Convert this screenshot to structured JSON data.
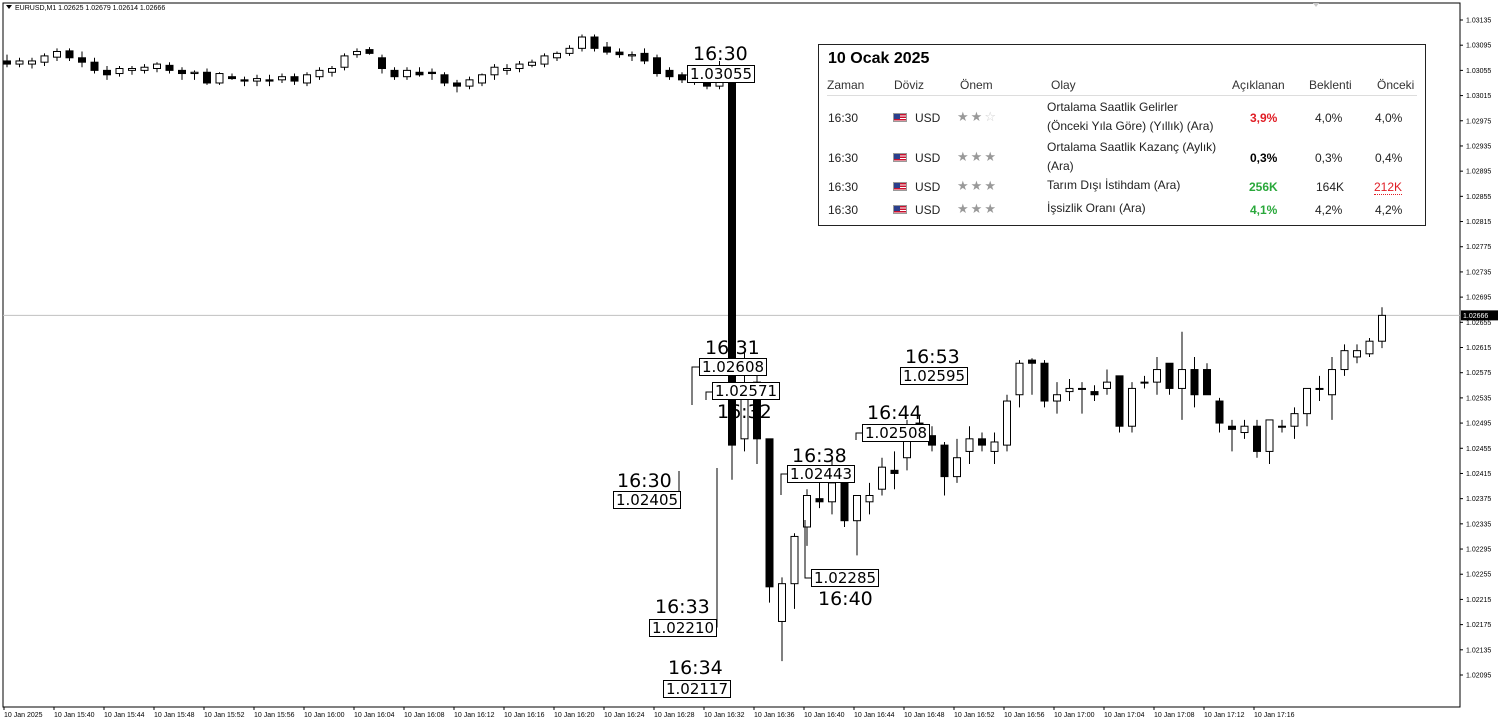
{
  "chart_title": "EURUSD,M1  1.02625 1.02679 1.02614 1.02666",
  "current_price_label": "1.02666",
  "chart_data": {
    "type": "candlestick",
    "symbol": "EURUSD",
    "timeframe": "M1",
    "ohlc_header": {
      "open": 1.02625,
      "high": 1.02679,
      "low": 1.02614,
      "close": 1.02666
    },
    "current_price": 1.02666,
    "ylim": [
      1.02095,
      1.03135
    ],
    "y_ticks": [
      "1.03135",
      "1.03095",
      "1.03055",
      "1.03015",
      "1.02975",
      "1.02935",
      "1.02895",
      "1.02855",
      "1.02815",
      "1.02775",
      "1.02735",
      "1.02695",
      "1.02655",
      "1.02615",
      "1.02575",
      "1.02535",
      "1.02495",
      "1.02455",
      "1.02415",
      "1.02375",
      "1.02335",
      "1.02295",
      "1.02255",
      "1.02215",
      "1.02175",
      "1.02135",
      "1.02095"
    ],
    "x_ticks": [
      "10 Jan 2025",
      "10 Jan 15:40",
      "10 Jan 15:44",
      "10 Jan 15:48",
      "10 Jan 15:52",
      "10 Jan 15:56",
      "10 Jan 16:00",
      "10 Jan 16:04",
      "10 Jan 16:08",
      "10 Jan 16:12",
      "10 Jan 16:16",
      "10 Jan 16:20",
      "10 Jan 16:24",
      "10 Jan 16:28",
      "10 Jan 16:32",
      "10 Jan 16:36",
      "10 Jan 16:40",
      "10 Jan 16:44",
      "10 Jan 16:48",
      "10 Jan 16:52",
      "10 Jan 16:56",
      "10 Jan 17:00",
      "10 Jan 17:04",
      "10 Jan 17:08",
      "10 Jan 17:12",
      "10 Jan 17:16"
    ],
    "candles": [
      [
        1.0307,
        1.0308,
        1.0306,
        1.03065
      ],
      [
        1.03065,
        1.03075,
        1.0306,
        1.0307
      ],
      [
        1.03065,
        1.03075,
        1.03058,
        1.0307
      ],
      [
        1.03068,
        1.03082,
        1.03062,
        1.03078
      ],
      [
        1.03076,
        1.0309,
        1.0307,
        1.03085
      ],
      [
        1.03086,
        1.0309,
        1.0307,
        1.03075
      ],
      [
        1.03075,
        1.03085,
        1.0306,
        1.03068
      ],
      [
        1.03068,
        1.03075,
        1.0305,
        1.03055
      ],
      [
        1.03055,
        1.03062,
        1.0304,
        1.03048
      ],
      [
        1.0305,
        1.03062,
        1.03045,
        1.03058
      ],
      [
        1.03055,
        1.03062,
        1.03048,
        1.03058
      ],
      [
        1.03055,
        1.03065,
        1.0305,
        1.0306
      ],
      [
        1.03058,
        1.03068,
        1.03052,
        1.03065
      ],
      [
        1.03063,
        1.03068,
        1.0305,
        1.03055
      ],
      [
        1.03055,
        1.0306,
        1.0304,
        1.0305
      ],
      [
        1.0305,
        1.03055,
        1.0304,
        1.03052
      ],
      [
        1.03052,
        1.03058,
        1.03032,
        1.03035
      ],
      [
        1.03035,
        1.03052,
        1.03032,
        1.0305
      ],
      [
        1.03045,
        1.0305,
        1.0304,
        1.03042
      ],
      [
        1.0304,
        1.03045,
        1.0303,
        1.03038
      ],
      [
        1.03038,
        1.03048,
        1.0303,
        1.03042
      ],
      [
        1.0304,
        1.03048,
        1.0303,
        1.03038
      ],
      [
        1.0304,
        1.0305,
        1.03035,
        1.03045
      ],
      [
        1.03045,
        1.0305,
        1.03032,
        1.03038
      ],
      [
        1.03035,
        1.03052,
        1.0303,
        1.03048
      ],
      [
        1.03045,
        1.0306,
        1.0304,
        1.03055
      ],
      [
        1.03052,
        1.03062,
        1.03045,
        1.03058
      ],
      [
        1.0306,
        1.03082,
        1.03055,
        1.03078
      ],
      [
        1.0308,
        1.0309,
        1.03075,
        1.03085
      ],
      [
        1.03088,
        1.03092,
        1.0308,
        1.03082
      ],
      [
        1.03075,
        1.0308,
        1.0305,
        1.03058
      ],
      [
        1.03055,
        1.0306,
        1.0304,
        1.03045
      ],
      [
        1.03045,
        1.0306,
        1.0304,
        1.03055
      ],
      [
        1.03052,
        1.0306,
        1.03045,
        1.03048
      ],
      [
        1.03052,
        1.03058,
        1.0304,
        1.0305
      ],
      [
        1.03048,
        1.03052,
        1.0303,
        1.03035
      ],
      [
        1.03035,
        1.0304,
        1.0302,
        1.0303
      ],
      [
        1.0303,
        1.03045,
        1.03025,
        1.0304
      ],
      [
        1.03035,
        1.0305,
        1.0303,
        1.03048
      ],
      [
        1.03048,
        1.03065,
        1.0304,
        1.0306
      ],
      [
        1.03055,
        1.03065,
        1.03048,
        1.03058
      ],
      [
        1.03058,
        1.0307,
        1.03052,
        1.03065
      ],
      [
        1.03063,
        1.03072,
        1.0306,
        1.03068
      ],
      [
        1.03065,
        1.03082,
        1.0306,
        1.03078
      ],
      [
        1.03075,
        1.03085,
        1.0307,
        1.03082
      ],
      [
        1.03082,
        1.03095,
        1.03078,
        1.0309
      ],
      [
        1.0309,
        1.03112,
        1.03085,
        1.03108
      ],
      [
        1.03108,
        1.03112,
        1.03085,
        1.0309
      ],
      [
        1.03092,
        1.031,
        1.0308,
        1.03084
      ],
      [
        1.03084,
        1.0309,
        1.03075,
        1.0308
      ],
      [
        1.03078,
        1.03085,
        1.0307,
        1.0308
      ],
      [
        1.03082,
        1.0309,
        1.03065,
        1.0307
      ],
      [
        1.03075,
        1.0308,
        1.03045,
        1.0305
      ],
      [
        1.03055,
        1.0306,
        1.0304,
        1.03045
      ],
      [
        1.03048,
        1.03052,
        1.03035,
        1.0304
      ],
      [
        1.03042,
        1.03048,
        1.03032,
        1.03036
      ],
      [
        1.0304,
        1.03045,
        1.03025,
        1.0303
      ],
      [
        1.0303,
        1.0307,
        1.03025,
        1.03055
      ],
      [
        1.03055,
        1.03055,
        1.02405,
        1.0246
      ],
      [
        1.0247,
        1.02608,
        1.0245,
        1.0255
      ],
      [
        1.0256,
        1.02571,
        1.0243,
        1.0247
      ],
      [
        1.0247,
        1.0247,
        1.0221,
        1.02235
      ],
      [
        1.0218,
        1.0225,
        1.02117,
        1.0224
      ],
      [
        1.0224,
        1.0232,
        1.022,
        1.02315
      ],
      [
        1.0233,
        1.0239,
        1.023,
        1.0238
      ],
      [
        1.02375,
        1.0242,
        1.0236,
        1.0237
      ],
      [
        1.0237,
        1.02443,
        1.0235,
        1.024
      ],
      [
        1.024,
        1.0241,
        1.0233,
        1.0234
      ],
      [
        1.0234,
        1.0237,
        1.02285,
        1.0238
      ],
      [
        1.0237,
        1.024,
        1.0235,
        1.0238
      ],
      [
        1.0239,
        1.0244,
        1.0238,
        1.02425
      ],
      [
        1.0242,
        1.0245,
        1.0239,
        1.02415
      ],
      [
        1.0244,
        1.025,
        1.0242,
        1.0249
      ],
      [
        1.02495,
        1.02508,
        1.0247,
        1.0248
      ],
      [
        1.02475,
        1.0249,
        1.0245,
        1.0246
      ],
      [
        1.0246,
        1.02465,
        1.0238,
        1.0241
      ],
      [
        1.0241,
        1.0247,
        1.024,
        1.0244
      ],
      [
        1.0245,
        1.0249,
        1.0243,
        1.0247
      ],
      [
        1.0247,
        1.0248,
        1.0245,
        1.0246
      ],
      [
        1.0245,
        1.0248,
        1.0243,
        1.02465
      ],
      [
        1.0246,
        1.0254,
        1.0245,
        1.0253
      ],
      [
        1.0254,
        1.02595,
        1.0252,
        1.0259
      ],
      [
        1.02595,
        1.02598,
        1.0254,
        1.0259
      ],
      [
        1.0259,
        1.02595,
        1.0252,
        1.0253
      ],
      [
        1.0253,
        1.0256,
        1.0251,
        1.0254
      ],
      [
        1.02545,
        1.02565,
        1.0253,
        1.0255
      ],
      [
        1.0255,
        1.0256,
        1.0251,
        1.0255
      ],
      [
        1.02545,
        1.02555,
        1.0253,
        1.0254
      ],
      [
        1.0255,
        1.0258,
        1.0254,
        1.0256
      ],
      [
        1.0257,
        1.0257,
        1.0248,
        1.0249
      ],
      [
        1.0249,
        1.0256,
        1.0248,
        1.0255
      ],
      [
        1.0256,
        1.0257,
        1.0255,
        1.0256
      ],
      [
        1.0256,
        1.026,
        1.0254,
        1.0258
      ],
      [
        1.0259,
        1.0259,
        1.0254,
        1.0255
      ],
      [
        1.0255,
        1.0264,
        1.025,
        1.0258
      ],
      [
        1.0258,
        1.026,
        1.0252,
        1.0254
      ],
      [
        1.0258,
        1.0259,
        1.0254,
        1.0254
      ],
      [
        1.0253,
        1.02535,
        1.0248,
        1.02495
      ],
      [
        1.0249,
        1.025,
        1.0245,
        1.02485
      ],
      [
        1.0248,
        1.025,
        1.0247,
        1.0249
      ],
      [
        1.0249,
        1.025,
        1.0244,
        1.0245
      ],
      [
        1.0245,
        1.025,
        1.0243,
        1.025
      ],
      [
        1.0249,
        1.025,
        1.0248,
        1.0249
      ],
      [
        1.0249,
        1.0252,
        1.0247,
        1.0251
      ],
      [
        1.0251,
        1.0255,
        1.0249,
        1.0255
      ],
      [
        1.0255,
        1.0257,
        1.0253,
        1.0255
      ],
      [
        1.0254,
        1.026,
        1.025,
        1.0258
      ],
      [
        1.0258,
        1.0262,
        1.0257,
        1.0261
      ],
      [
        1.026,
        1.0262,
        1.0259,
        1.0261
      ],
      [
        1.02605,
        1.0263,
        1.026,
        1.02625
      ],
      [
        1.02625,
        1.02679,
        1.02614,
        1.02666
      ]
    ]
  },
  "annotations": [
    {
      "time": "16:30",
      "price": "1.03055"
    },
    {
      "time": "16:30",
      "price": "1.02405"
    },
    {
      "time": "16:31",
      "price": "1.02608"
    },
    {
      "time": "16:32",
      "price": "1.02571"
    },
    {
      "time": "16:33",
      "price": "1.02210"
    },
    {
      "time": "16:34",
      "price": "1.02117"
    },
    {
      "time": "16:38",
      "price": "1.02443"
    },
    {
      "time": "16:40",
      "price": "1.02285"
    },
    {
      "time": "16:44",
      "price": "1.02508"
    },
    {
      "time": "16:53",
      "price": "1.02595"
    }
  ],
  "news": {
    "date": "10 Ocak 2025",
    "headers": {
      "time": "Zaman",
      "currency": "Döviz",
      "importance": "Önem",
      "event": "Olay",
      "actual": "Açıklanan",
      "forecast": "Beklenti",
      "previous": "Önceki"
    },
    "rows": [
      {
        "time": "16:30",
        "currency": "USD",
        "flag": "us-flag-icon",
        "stars": 2,
        "event_line1": "Ortalama Saatlik Gelirler",
        "event_line2": "(Önceki Yıla Göre) (Yıllık) (Ara)",
        "actual": "3,9%",
        "actual_color": "#e01c24",
        "forecast": "4,0%",
        "previous": "4,0%"
      },
      {
        "time": "16:30",
        "currency": "USD",
        "flag": "us-flag-icon",
        "stars": 3,
        "event_line1": "Ortalama Saatlik Kazanç (Aylık)",
        "event_line2": "(Ara)",
        "actual": "0,3%",
        "actual_color": "#000000",
        "forecast": "0,3%",
        "previous": "0,4%"
      },
      {
        "time": "16:30",
        "currency": "USD",
        "flag": "us-flag-icon",
        "stars": 3,
        "event_line1": "Tarım Dışı İstihdam (Ara)",
        "event_line2": "",
        "actual": "256K",
        "actual_color": "#2aa83b",
        "forecast": "164K",
        "previous": "212K",
        "previous_color": "#e01c24"
      },
      {
        "time": "16:30",
        "currency": "USD",
        "flag": "us-flag-icon",
        "stars": 3,
        "event_line1": "İşsizlik Oranı (Ara)",
        "event_line2": "",
        "actual": "4,1%",
        "actual_color": "#2aa83b",
        "forecast": "4,2%",
        "previous": "4,2%"
      }
    ]
  }
}
